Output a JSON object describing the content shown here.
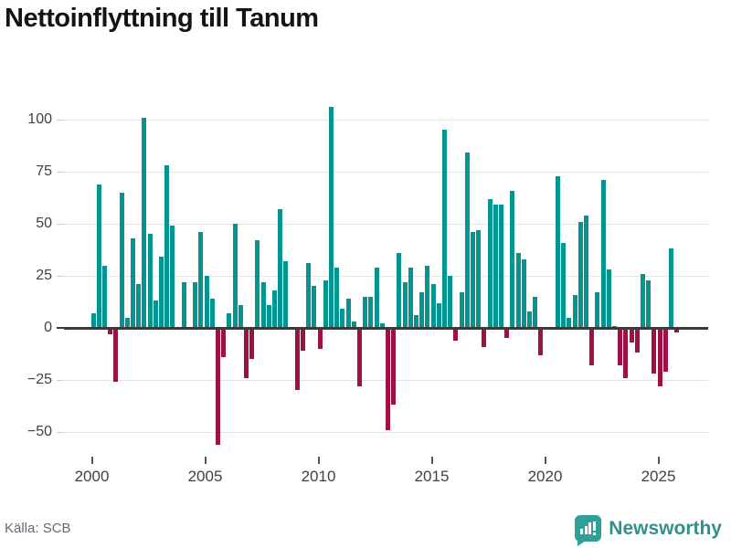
{
  "title": "Nettoinflyttning till Tanum",
  "source": "Källa: SCB",
  "branding": {
    "name": "Newsworthy",
    "icon": "bar-chart-speech-bubble"
  },
  "colors": {
    "positive_bar": "#009590",
    "negative_bar": "#9d1145",
    "grid": "#e4e4e4",
    "zero_line": "#3a3a3a",
    "axis_text": "#3f3f46",
    "title_text": "#141414",
    "source_text": "#686874",
    "brand_teal": "#2fa098"
  },
  "chart_data": {
    "type": "bar",
    "title": "Nettoinflyttning till Tanum",
    "xlabel": "",
    "ylabel": "",
    "frequency": "quarterly",
    "start": "2000Q1",
    "end": "2025Q4",
    "ylim": [
      -60,
      112
    ],
    "grid": true,
    "legend": "none",
    "y_ticks": [
      100,
      75,
      50,
      25,
      0,
      -25,
      -50
    ],
    "y_tick_labels": [
      "100",
      "75",
      "50",
      "25",
      "0",
      "−25",
      "−50"
    ],
    "x_tick_labels": [
      "2000",
      "2005",
      "2010",
      "2015",
      "2020",
      "2025"
    ],
    "x_tick_years": [
      2000,
      2005,
      2010,
      2015,
      2020,
      2025
    ],
    "points": [
      [
        "2000Q1",
        7
      ],
      [
        "2000Q2",
        69
      ],
      [
        "2000Q3",
        30
      ],
      [
        "2000Q4",
        -3
      ],
      [
        "2001Q1",
        -26
      ],
      [
        "2001Q2",
        65
      ],
      [
        "2001Q3",
        5
      ],
      [
        "2001Q4",
        43
      ],
      [
        "2002Q1",
        21
      ],
      [
        "2002Q2",
        101
      ],
      [
        "2002Q3",
        45
      ],
      [
        "2002Q4",
        13
      ],
      [
        "2003Q1",
        34
      ],
      [
        "2003Q2",
        78
      ],
      [
        "2003Q3",
        49
      ],
      [
        "2003Q4",
        -1
      ],
      [
        "2004Q1",
        22
      ],
      [
        "2004Q2",
        0
      ],
      [
        "2004Q3",
        22
      ],
      [
        "2004Q4",
        46
      ],
      [
        "2005Q1",
        25
      ],
      [
        "2005Q2",
        14
      ],
      [
        "2005Q3",
        -56
      ],
      [
        "2005Q4",
        -14
      ],
      [
        "2006Q1",
        7
      ],
      [
        "2006Q2",
        50
      ],
      [
        "2006Q3",
        11
      ],
      [
        "2006Q4",
        -24
      ],
      [
        "2007Q1",
        -15
      ],
      [
        "2007Q2",
        42
      ],
      [
        "2007Q3",
        22
      ],
      [
        "2007Q4",
        11
      ],
      [
        "2008Q1",
        18
      ],
      [
        "2008Q2",
        57
      ],
      [
        "2008Q3",
        32
      ],
      [
        "2008Q4",
        0
      ],
      [
        "2009Q1",
        -30
      ],
      [
        "2009Q2",
        -11
      ],
      [
        "2009Q3",
        31
      ],
      [
        "2009Q4",
        20
      ],
      [
        "2010Q1",
        -10
      ],
      [
        "2010Q2",
        23
      ],
      [
        "2010Q3",
        106
      ],
      [
        "2010Q4",
        29
      ],
      [
        "2011Q1",
        9
      ],
      [
        "2011Q2",
        14
      ],
      [
        "2011Q3",
        3
      ],
      [
        "2011Q4",
        -28
      ],
      [
        "2012Q1",
        15
      ],
      [
        "2012Q2",
        15
      ],
      [
        "2012Q3",
        29
      ],
      [
        "2012Q4",
        2
      ],
      [
        "2013Q1",
        -49
      ],
      [
        "2013Q2",
        -37
      ],
      [
        "2013Q3",
        36
      ],
      [
        "2013Q4",
        22
      ],
      [
        "2014Q1",
        29
      ],
      [
        "2014Q2",
        6
      ],
      [
        "2014Q3",
        17
      ],
      [
        "2014Q4",
        30
      ],
      [
        "2015Q1",
        21
      ],
      [
        "2015Q2",
        12
      ],
      [
        "2015Q3",
        95
      ],
      [
        "2015Q4",
        25
      ],
      [
        "2016Q1",
        -6
      ],
      [
        "2016Q2",
        17
      ],
      [
        "2016Q3",
        84
      ],
      [
        "2016Q4",
        46
      ],
      [
        "2017Q1",
        47
      ],
      [
        "2017Q2",
        -9
      ],
      [
        "2017Q3",
        62
      ],
      [
        "2017Q4",
        59
      ],
      [
        "2018Q1",
        59
      ],
      [
        "2018Q2",
        -5
      ],
      [
        "2018Q3",
        66
      ],
      [
        "2018Q4",
        36
      ],
      [
        "2019Q1",
        33
      ],
      [
        "2019Q2",
        8
      ],
      [
        "2019Q3",
        15
      ],
      [
        "2019Q4",
        -13
      ],
      [
        "2020Q1",
        0
      ],
      [
        "2020Q2",
        0
      ],
      [
        "2020Q3",
        73
      ],
      [
        "2020Q4",
        41
      ],
      [
        "2021Q1",
        5
      ],
      [
        "2021Q2",
        16
      ],
      [
        "2021Q3",
        51
      ],
      [
        "2021Q4",
        54
      ],
      [
        "2022Q1",
        -18
      ],
      [
        "2022Q2",
        17
      ],
      [
        "2022Q3",
        71
      ],
      [
        "2022Q4",
        28
      ],
      [
        "2023Q1",
        1
      ],
      [
        "2023Q2",
        -18
      ],
      [
        "2023Q3",
        -24
      ],
      [
        "2023Q4",
        -7
      ],
      [
        "2024Q1",
        -12
      ],
      [
        "2024Q2",
        26
      ],
      [
        "2024Q3",
        23
      ],
      [
        "2024Q4",
        -22
      ],
      [
        "2025Q1",
        -28
      ],
      [
        "2025Q2",
        -21
      ],
      [
        "2025Q3",
        38
      ],
      [
        "2025Q4",
        -2
      ]
    ]
  }
}
